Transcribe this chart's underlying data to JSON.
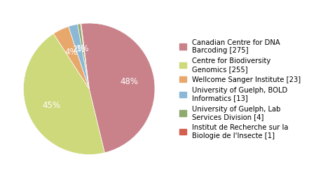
{
  "labels": [
    "Canadian Centre for DNA\nBarcoding [275]",
    "Centre for Biodiversity\nGenomics [255]",
    "Wellcome Sanger Institute [23]",
    "University of Guelph, BOLD\nInformatics [13]",
    "University of Guelph, Lab\nServices Division [4]",
    "Institut de Recherche sur la\nBiologie de l'Insecte [1]"
  ],
  "values": [
    275,
    255,
    23,
    13,
    4,
    1
  ],
  "colors": [
    "#c9828a",
    "#cdd97a",
    "#e8a86b",
    "#8bb8d4",
    "#8faa6e",
    "#d45f4e"
  ],
  "startangle": 97,
  "background_color": "#ffffff",
  "text_color": "#ffffff",
  "legend_fontsize": 7.2,
  "pct_fontsize": 8.5
}
